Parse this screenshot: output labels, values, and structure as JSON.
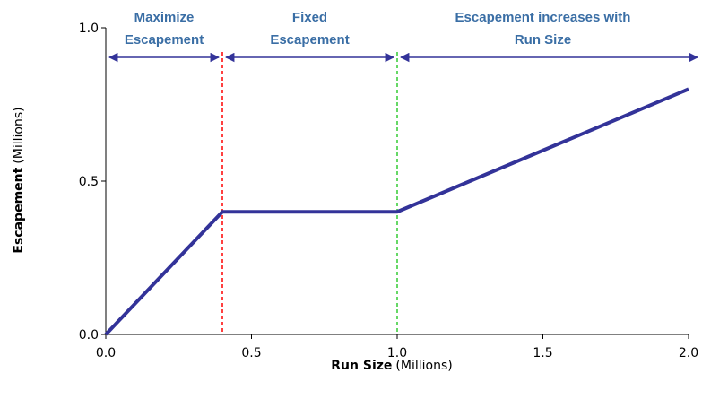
{
  "chart_data": {
    "type": "line",
    "xlabel_bold": "Run Size",
    "xlabel_unit": "(Millions)",
    "ylabel_bold": "Escapement",
    "ylabel_unit": "(Millions)",
    "xlim": [
      0,
      2.0
    ],
    "ylim": [
      0,
      1.0
    ],
    "xticks": [
      "0.0",
      "0.5",
      "1.0",
      "1.5",
      "2.0"
    ],
    "yticks": [
      "0.0",
      "0.5",
      "1.0"
    ],
    "grid": false,
    "series": [
      {
        "x": [
          0,
          0.4,
          1.0,
          2.0
        ],
        "y": [
          0,
          0.4,
          0.4,
          0.8
        ],
        "color": "#333399"
      }
    ],
    "thresholds": [
      {
        "x": 0.4,
        "color": "#ff0000"
      },
      {
        "x": 1.0,
        "color": "#33cc33"
      }
    ],
    "regions": [
      {
        "label_line1": "Maximize",
        "label_line2": "Escapement",
        "from": 0.0,
        "to": 0.4
      },
      {
        "label_line1": "Fixed",
        "label_line2": "Escapement",
        "from": 0.4,
        "to": 1.0
      },
      {
        "label_line1": "Escapement increases with",
        "label_line2": "Run Size",
        "from": 1.0,
        "to": 2.0
      }
    ],
    "arrow_color": "#333399",
    "label_color": "#3a6ea5"
  }
}
